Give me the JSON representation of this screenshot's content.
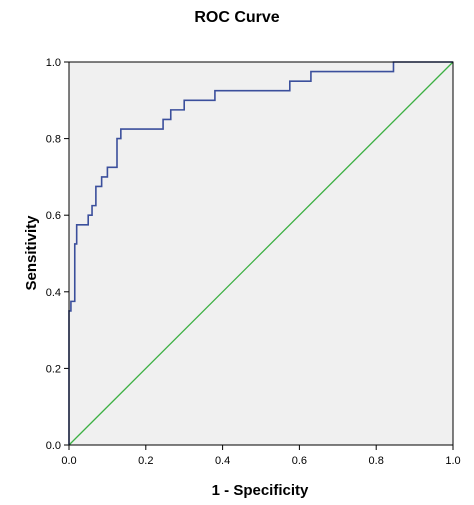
{
  "chart_data": {
    "type": "line",
    "title": "ROC Curve",
    "xlabel": "1 - Specificity",
    "ylabel": "Sensitivity",
    "xlim": [
      0.0,
      1.0
    ],
    "ylim": [
      0.0,
      1.0
    ],
    "x_ticks": [
      "0.0",
      "0.2",
      "0.4",
      "0.6",
      "0.8",
      "1.0"
    ],
    "y_ticks": [
      "0.0",
      "0.2",
      "0.4",
      "0.6",
      "0.8",
      "1.0"
    ],
    "grid": false,
    "plot_background": "#f0f0f0",
    "series": [
      {
        "color": "#3b4f9c",
        "style": "step",
        "points": [
          [
            0.0,
            0.0
          ],
          [
            0.0,
            0.35
          ],
          [
            0.005,
            0.35
          ],
          [
            0.005,
            0.375
          ],
          [
            0.015,
            0.375
          ],
          [
            0.015,
            0.525
          ],
          [
            0.02,
            0.525
          ],
          [
            0.02,
            0.575
          ],
          [
            0.05,
            0.575
          ],
          [
            0.05,
            0.6
          ],
          [
            0.06,
            0.6
          ],
          [
            0.06,
            0.625
          ],
          [
            0.07,
            0.625
          ],
          [
            0.07,
            0.675
          ],
          [
            0.085,
            0.675
          ],
          [
            0.085,
            0.7
          ],
          [
            0.1,
            0.7
          ],
          [
            0.1,
            0.725
          ],
          [
            0.125,
            0.725
          ],
          [
            0.125,
            0.8
          ],
          [
            0.135,
            0.8
          ],
          [
            0.135,
            0.825
          ],
          [
            0.245,
            0.825
          ],
          [
            0.245,
            0.85
          ],
          [
            0.265,
            0.85
          ],
          [
            0.265,
            0.875
          ],
          [
            0.3,
            0.875
          ],
          [
            0.3,
            0.9
          ],
          [
            0.38,
            0.9
          ],
          [
            0.38,
            0.925
          ],
          [
            0.575,
            0.925
          ],
          [
            0.575,
            0.95
          ],
          [
            0.63,
            0.95
          ],
          [
            0.63,
            0.975
          ],
          [
            0.845,
            0.975
          ],
          [
            0.845,
            1.0
          ],
          [
            1.0,
            1.0
          ]
        ]
      },
      {
        "color": "#3cb043",
        "style": "reference",
        "points": [
          [
            0.0,
            0.0
          ],
          [
            1.0,
            1.0
          ]
        ]
      }
    ]
  }
}
